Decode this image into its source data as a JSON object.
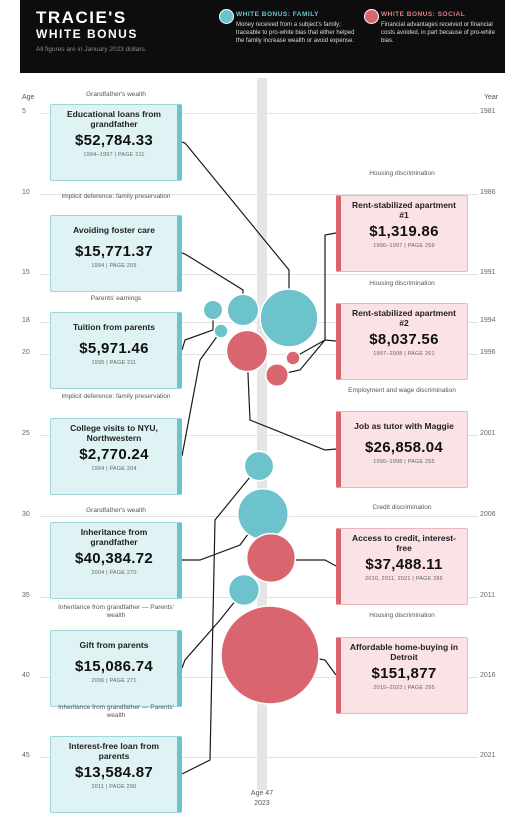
{
  "header": {
    "title": "TRACIE'S",
    "subtitle": "WHITE BONUS",
    "note": "All figures are in January 2023 dollars."
  },
  "legend": [
    {
      "title": "WHITE BONUS: FAMILY",
      "text": "Money received from a subject's family; traceable to pro-white bias that either helped the family increase wealth or avoid expense.",
      "color": "#6cc3cc"
    },
    {
      "title": "WHITE BONUS: SOCIAL",
      "text": "Financial advantages received or financial costs avoided, in part because of pro-white bias.",
      "color": "#d9666e"
    }
  ],
  "axis": {
    "left_label": "Age",
    "right_label": "Year",
    "bottom_age": "Age 47",
    "bottom_year": "2023"
  },
  "chart_data": {
    "type": "scatter",
    "title": "TRACIE'S WHITE BONUS",
    "x_axis": {
      "label": "Age",
      "ticks": [
        5,
        10,
        15,
        18,
        20,
        25,
        30,
        35,
        40,
        45
      ],
      "range": [
        4,
        47
      ]
    },
    "year_axis": {
      "label": "Year",
      "ticks": [
        1981,
        1986,
        1991,
        1994,
        1996,
        2001,
        2006,
        2011,
        2016,
        2021
      ]
    },
    "items": [
      {
        "group": "family",
        "category": "Grandfather's wealth",
        "label": "Educational loans from grandfather",
        "amount": 52784.33,
        "amount_text": "$52,784.33",
        "source": "1994–1997 | PAGE 211",
        "age": 18
      },
      {
        "group": "family",
        "category": "Implicit deference: family preservation",
        "label": "Avoiding foster care",
        "amount": 15771.37,
        "amount_text": "$15,771.37",
        "source": "1994 | PAGE 209",
        "age": 18
      },
      {
        "group": "family",
        "category": "Parents' earnings",
        "label": "Tuition from parents",
        "amount": 5971.46,
        "amount_text": "$5,971.46",
        "source": "1995 | PAGE 211",
        "age": 18
      },
      {
        "group": "family",
        "category": "Implicit deference: family preservation",
        "label": "College visits to NYU, Northwestern",
        "amount": 2770.24,
        "amount_text": "$2,770.24",
        "source": "1994 | PAGE 204",
        "age": 18.5
      },
      {
        "group": "family",
        "category": "Grandfather's wealth",
        "label": "Inheritance from grandfather",
        "amount": 40384.72,
        "amount_text": "$40,384.72",
        "source": "2004 | PAGE 270",
        "age": 28
      },
      {
        "group": "family",
        "category": "Inheritance from grandfather / Parents' wealth",
        "label": "Gift from parents",
        "amount": 15086.74,
        "amount_text": "$15,086.74",
        "source": "2006 | PAGE 271",
        "age": 30
      },
      {
        "group": "family",
        "category": "Inheritance from grandfather / Parents' wealth",
        "label": "Interest-free loan from parents",
        "amount": 13584.87,
        "amount_text": "$13,584.87",
        "source": "2011 | PAGE 290",
        "age": 35
      },
      {
        "group": "social",
        "category": "Housing discrimination",
        "label": "Rent-stabilized apartment #1",
        "amount": 1319.86,
        "amount_text": "$1,319.86",
        "source": "1996–1997 | PAGE 259",
        "age": 20
      },
      {
        "group": "social",
        "category": "Housing discrimination",
        "label": "Rent-stabilized apartment #2",
        "amount": 8037.56,
        "amount_text": "$8,037.56",
        "source": "1997–2008 | PAGE 261",
        "age": 21
      },
      {
        "group": "social",
        "category": "Employment and wage discrimination",
        "label": "Job as tutor with Maggie",
        "amount": 26858.04,
        "amount_text": "$26,858.04",
        "source": "1995–1998 | PAGE 255",
        "age": 19.5
      },
      {
        "group": "social",
        "category": "Credit discrimination",
        "label": "Access to credit, interest-free",
        "amount": 37488.11,
        "amount_text": "$37,488.11",
        "source": "2010, 2011, 2021 | PAGE 286",
        "age": 33
      },
      {
        "group": "social",
        "category": "Housing discrimination",
        "label": "Affordable home-buying in Detroit",
        "amount": 151877,
        "amount_text": "$151,877",
        "source": "2015–2023 | PAGE 295",
        "age": 39
      }
    ]
  }
}
